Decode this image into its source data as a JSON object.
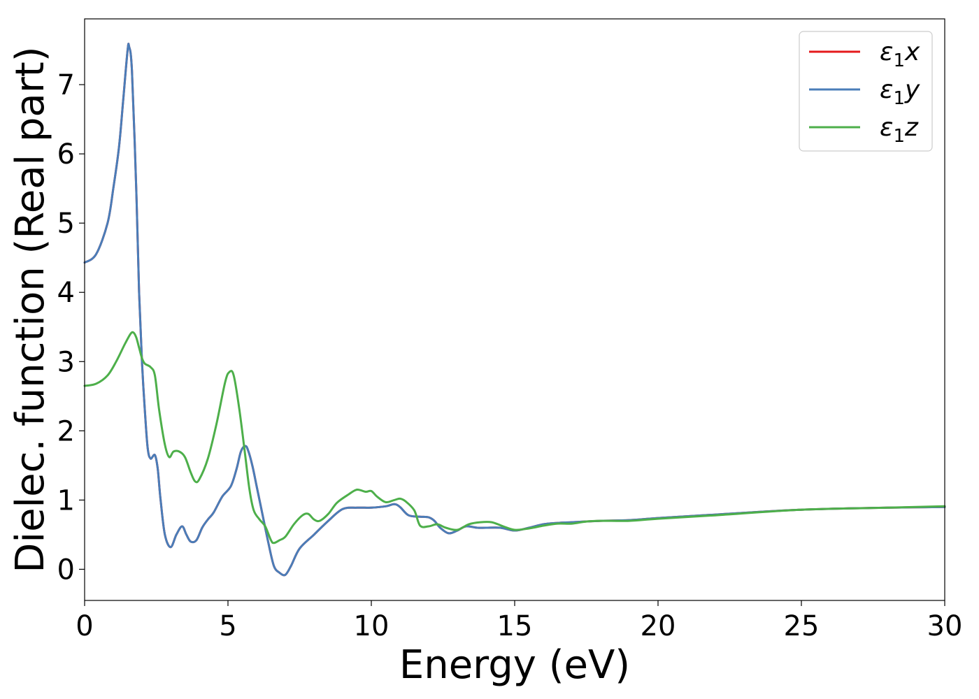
{
  "chart_data": {
    "type": "line",
    "title": "",
    "xlabel": "Energy (eV)",
    "ylabel": "Dielec. function (Real part)",
    "xlim": [
      0,
      30
    ],
    "ylim": [
      -0.45,
      7.95
    ],
    "xticks": [
      0,
      5,
      10,
      15,
      20,
      25,
      30
    ],
    "yticks": [
      0,
      1,
      2,
      3,
      4,
      5,
      6,
      7
    ],
    "grid": false,
    "legend_position": "top-right",
    "series": [
      {
        "name": "ε₁x",
        "legend_main": "ε",
        "legend_sub": "1",
        "legend_tail": "x",
        "color": "#e41a1c",
        "x": [
          0,
          0.4,
          0.8,
          1.0,
          1.2,
          1.35,
          1.5,
          1.55,
          1.65,
          1.8,
          1.9,
          2.0,
          2.1,
          2.2,
          2.3,
          2.45,
          2.55,
          2.65,
          2.8,
          3.0,
          3.2,
          3.4,
          3.55,
          3.7,
          3.9,
          4.1,
          4.3,
          4.5,
          4.8,
          5.1,
          5.3,
          5.45,
          5.6,
          5.7,
          5.85,
          6.0,
          6.2,
          6.4,
          6.6,
          6.8,
          7.0,
          7.2,
          7.5,
          8.0,
          8.5,
          9.0,
          9.5,
          10.0,
          10.5,
          10.8,
          11.0,
          11.3,
          11.7,
          12.0,
          12.2,
          12.4,
          12.7,
          13.0,
          13.3,
          13.7,
          14.0,
          14.5,
          15.0,
          15.5,
          16.0,
          16.5,
          17.0,
          18.0,
          19.0,
          20.0,
          22.0,
          25.0,
          28.0,
          30.0
        ],
        "y": [
          4.43,
          4.55,
          5.0,
          5.5,
          6.1,
          6.8,
          7.5,
          7.55,
          7.2,
          5.5,
          4.0,
          3.0,
          2.3,
          1.75,
          1.6,
          1.65,
          1.45,
          1.0,
          0.5,
          0.32,
          0.5,
          0.62,
          0.5,
          0.4,
          0.42,
          0.6,
          0.72,
          0.82,
          1.05,
          1.2,
          1.45,
          1.7,
          1.78,
          1.72,
          1.5,
          1.2,
          0.8,
          0.4,
          0.05,
          -0.05,
          -0.08,
          0.05,
          0.3,
          0.5,
          0.7,
          0.87,
          0.89,
          0.89,
          0.91,
          0.94,
          0.9,
          0.78,
          0.76,
          0.75,
          0.7,
          0.6,
          0.52,
          0.56,
          0.62,
          0.6,
          0.6,
          0.6,
          0.56,
          0.6,
          0.65,
          0.67,
          0.68,
          0.7,
          0.71,
          0.74,
          0.79,
          0.86,
          0.89,
          0.9
        ]
      },
      {
        "name": "ε₁y",
        "legend_main": "ε",
        "legend_sub": "1",
        "legend_tail": "y",
        "color": "#4a7db8",
        "x": [
          0,
          0.4,
          0.8,
          1.0,
          1.2,
          1.35,
          1.5,
          1.55,
          1.65,
          1.8,
          1.9,
          2.0,
          2.1,
          2.2,
          2.3,
          2.45,
          2.55,
          2.65,
          2.8,
          3.0,
          3.2,
          3.4,
          3.55,
          3.7,
          3.9,
          4.1,
          4.3,
          4.5,
          4.8,
          5.1,
          5.3,
          5.45,
          5.6,
          5.7,
          5.85,
          6.0,
          6.2,
          6.4,
          6.6,
          6.8,
          7.0,
          7.2,
          7.5,
          8.0,
          8.5,
          9.0,
          9.5,
          10.0,
          10.5,
          10.8,
          11.0,
          11.3,
          11.7,
          12.0,
          12.2,
          12.4,
          12.7,
          13.0,
          13.3,
          13.7,
          14.0,
          14.5,
          15.0,
          15.5,
          16.0,
          16.5,
          17.0,
          18.0,
          19.0,
          20.0,
          22.0,
          25.0,
          28.0,
          30.0
        ],
        "y": [
          4.43,
          4.55,
          5.0,
          5.5,
          6.1,
          6.8,
          7.5,
          7.55,
          7.2,
          5.5,
          4.0,
          3.0,
          2.3,
          1.75,
          1.6,
          1.65,
          1.45,
          1.0,
          0.5,
          0.32,
          0.5,
          0.62,
          0.5,
          0.4,
          0.42,
          0.6,
          0.72,
          0.82,
          1.05,
          1.2,
          1.45,
          1.7,
          1.78,
          1.72,
          1.5,
          1.2,
          0.8,
          0.4,
          0.05,
          -0.05,
          -0.08,
          0.05,
          0.3,
          0.5,
          0.7,
          0.87,
          0.89,
          0.89,
          0.91,
          0.94,
          0.9,
          0.78,
          0.76,
          0.75,
          0.7,
          0.6,
          0.52,
          0.56,
          0.62,
          0.6,
          0.6,
          0.6,
          0.56,
          0.6,
          0.65,
          0.67,
          0.68,
          0.7,
          0.71,
          0.74,
          0.79,
          0.86,
          0.89,
          0.9
        ]
      },
      {
        "name": "ε₁z",
        "legend_main": "ε",
        "legend_sub": "1",
        "legend_tail": "z",
        "color": "#4daf4a",
        "x": [
          0,
          0.4,
          0.8,
          1.1,
          1.4,
          1.6,
          1.7,
          1.8,
          1.9,
          2.0,
          2.1,
          2.3,
          2.45,
          2.6,
          2.8,
          2.95,
          3.1,
          3.3,
          3.5,
          3.7,
          3.85,
          4.0,
          4.3,
          4.6,
          4.9,
          5.05,
          5.2,
          5.4,
          5.6,
          5.75,
          5.9,
          6.1,
          6.3,
          6.5,
          6.6,
          6.8,
          7.0,
          7.3,
          7.6,
          7.8,
          8.0,
          8.2,
          8.5,
          8.8,
          9.2,
          9.5,
          9.8,
          10.0,
          10.2,
          10.5,
          10.8,
          11.0,
          11.2,
          11.5,
          11.7,
          12.0,
          12.3,
          12.6,
          13.0,
          13.4,
          13.8,
          14.2,
          14.6,
          15.0,
          15.5,
          16.0,
          16.5,
          17.0,
          17.5,
          18.0,
          19.0,
          20.0,
          22.0,
          25.0,
          28.0,
          30.0
        ],
        "y": [
          2.65,
          2.68,
          2.8,
          3.0,
          3.25,
          3.4,
          3.42,
          3.35,
          3.2,
          3.05,
          2.97,
          2.92,
          2.8,
          2.3,
          1.8,
          1.62,
          1.7,
          1.7,
          1.62,
          1.4,
          1.27,
          1.3,
          1.6,
          2.1,
          2.7,
          2.85,
          2.8,
          2.3,
          1.65,
          1.15,
          0.85,
          0.72,
          0.62,
          0.42,
          0.38,
          0.42,
          0.47,
          0.65,
          0.78,
          0.8,
          0.72,
          0.7,
          0.8,
          0.96,
          1.08,
          1.15,
          1.12,
          1.13,
          1.05,
          0.97,
          1.0,
          1.02,
          0.98,
          0.85,
          0.63,
          0.62,
          0.65,
          0.6,
          0.57,
          0.65,
          0.68,
          0.68,
          0.62,
          0.57,
          0.59,
          0.63,
          0.66,
          0.66,
          0.69,
          0.7,
          0.7,
          0.73,
          0.78,
          0.86,
          0.89,
          0.91
        ]
      }
    ]
  }
}
